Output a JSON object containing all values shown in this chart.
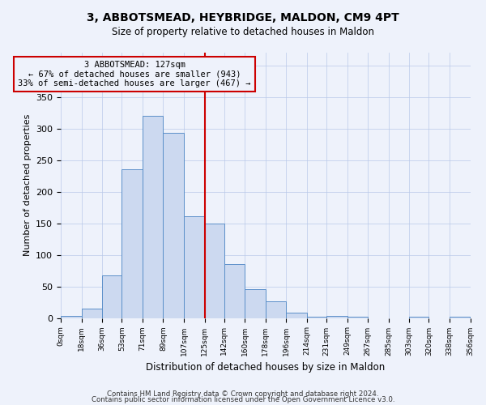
{
  "title": "3, ABBOTSMEAD, HEYBRIDGE, MALDON, CM9 4PT",
  "subtitle": "Size of property relative to detached houses in Maldon",
  "xlabel": "Distribution of detached houses by size in Maldon",
  "ylabel": "Number of detached properties",
  "bin_labels": [
    "0sqm",
    "18sqm",
    "36sqm",
    "53sqm",
    "71sqm",
    "89sqm",
    "107sqm",
    "125sqm",
    "142sqm",
    "160sqm",
    "178sqm",
    "196sqm",
    "214sqm",
    "231sqm",
    "249sqm",
    "267sqm",
    "285sqm",
    "303sqm",
    "320sqm",
    "338sqm",
    "356sqm"
  ],
  "bar_heights": [
    3,
    15,
    67,
    235,
    320,
    293,
    161,
    150,
    85,
    45,
    27,
    8,
    2,
    3,
    2,
    0,
    0,
    2,
    0,
    2
  ],
  "bar_color": "#ccd9f0",
  "bar_edge_color": "#5b8fc9",
  "vline_x": 125,
  "marker_label": "3 ABBOTSMEAD: 127sqm",
  "annotation_line1": "← 67% of detached houses are smaller (943)",
  "annotation_line2": "33% of semi-detached houses are larger (467) →",
  "vline_color": "#cc0000",
  "box_edge_color": "#cc0000",
  "ylim": [
    0,
    420
  ],
  "footer1": "Contains HM Land Registry data © Crown copyright and database right 2024.",
  "footer2": "Contains public sector information licensed under the Open Government Licence v3.0.",
  "background_color": "#eef2fb",
  "bin_edges": [
    0,
    18,
    36,
    53,
    71,
    89,
    107,
    125,
    142,
    160,
    178,
    196,
    214,
    231,
    249,
    267,
    285,
    303,
    320,
    338,
    356
  ]
}
